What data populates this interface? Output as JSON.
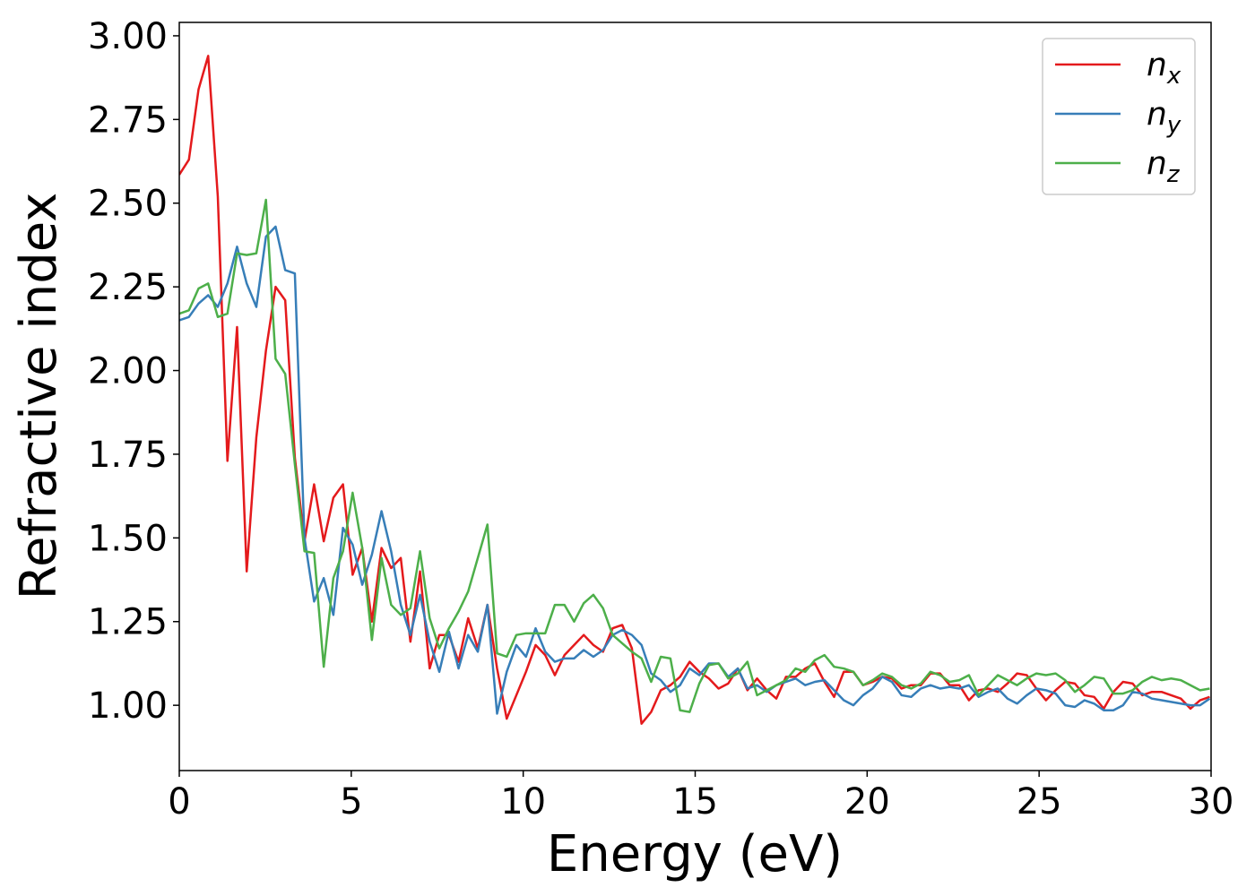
{
  "chart_data": {
    "type": "line",
    "xlabel": "Energy (eV)",
    "ylabel": "Refractive index",
    "xlim": [
      0,
      30
    ],
    "ylim": [
      0.805,
      3.04
    ],
    "xticks": [
      0,
      5,
      10,
      15,
      20,
      25,
      30
    ],
    "yticks": [
      {
        "value": 1,
        "label": "1.00"
      },
      {
        "value": 1.25,
        "label": "1.25"
      },
      {
        "value": 1.5,
        "label": "1.50"
      },
      {
        "value": 1.75,
        "label": "1.75"
      },
      {
        "value": 2,
        "label": "2.00"
      },
      {
        "value": 2.25,
        "label": "2.25"
      },
      {
        "value": 2.5,
        "label": "2.50"
      },
      {
        "value": 2.75,
        "label": "2.75"
      },
      {
        "value": 3,
        "label": "3.00"
      }
    ],
    "legend": "upper right",
    "grid": false,
    "x": [
      0,
      0.28,
      0.56,
      0.84,
      1.12,
      1.4,
      1.68,
      1.96,
      2.24,
      2.52,
      2.8,
      3.08,
      3.36,
      3.64,
      3.92,
      4.2,
      4.48,
      4.76,
      5.04,
      5.32,
      5.6,
      5.88,
      6.16,
      6.44,
      6.72,
      7,
      7.28,
      7.56,
      7.84,
      8.12,
      8.4,
      8.68,
      8.96,
      9.24,
      9.52,
      9.8,
      10.08,
      10.36,
      10.64,
      10.92,
      11.2,
      11.48,
      11.76,
      12.04,
      12.32,
      12.6,
      12.88,
      13.16,
      13.44,
      13.72,
      14,
      14.28,
      14.56,
      14.84,
      15.12,
      15.4,
      15.68,
      15.96,
      16.24,
      16.52,
      16.8,
      17.08,
      17.36,
      17.64,
      17.92,
      18.2,
      18.48,
      18.76,
      19.04,
      19.32,
      19.6,
      19.88,
      20.16,
      20.44,
      20.72,
      21,
      21.28,
      21.56,
      21.84,
      22.12,
      22.4,
      22.68,
      22.96,
      23.24,
      23.52,
      23.8,
      24.08,
      24.36,
      24.64,
      24.92,
      25.2,
      25.48,
      25.76,
      26.04,
      26.32,
      26.6,
      26.88,
      27.16,
      27.44,
      27.72,
      28,
      28.28,
      28.56,
      28.84,
      29.12,
      29.4,
      29.68,
      29.96
    ],
    "series": [
      {
        "name": "n_x",
        "color": "#e41a1c",
        "values": [
          2.585,
          2.63,
          2.84,
          2.94,
          2.52,
          1.73,
          2.13,
          1.4,
          1.8,
          2.06,
          2.25,
          2.21,
          1.74,
          1.49,
          1.66,
          1.49,
          1.62,
          1.66,
          1.39,
          1.47,
          1.25,
          1.47,
          1.41,
          1.44,
          1.19,
          1.4,
          1.11,
          1.21,
          1.21,
          1.13,
          1.26,
          1.17,
          1.3,
          1.11,
          0.96,
          1.03,
          1.1,
          1.18,
          1.15,
          1.09,
          1.15,
          1.18,
          1.21,
          1.18,
          1.16,
          1.23,
          1.24,
          1.17,
          0.945,
          0.98,
          1.045,
          1.06,
          1.085,
          1.13,
          1.1,
          1.08,
          1.05,
          1.065,
          1.11,
          1.045,
          1.08,
          1.045,
          1.02,
          1.085,
          1.085,
          1.11,
          1.125,
          1.07,
          1.025,
          1.1,
          1.1,
          1.06,
          1.07,
          1.085,
          1.08,
          1.05,
          1.06,
          1.06,
          1.095,
          1.095,
          1.06,
          1.06,
          1.015,
          1.045,
          1.05,
          1.04,
          1.065,
          1.095,
          1.09,
          1.05,
          1.015,
          1.045,
          1.07,
          1.065,
          1.03,
          1.025,
          0.99,
          1.04,
          1.07,
          1.065,
          1.03,
          1.04,
          1.04,
          1.03,
          1.02,
          0.99,
          1.015,
          1.025
        ]
      },
      {
        "name": "n_y",
        "color": "#377eb8",
        "values": [
          2.15,
          2.16,
          2.2,
          2.225,
          2.19,
          2.26,
          2.37,
          2.26,
          2.19,
          2.4,
          2.43,
          2.3,
          2.29,
          1.5,
          1.31,
          1.38,
          1.27,
          1.53,
          1.48,
          1.36,
          1.45,
          1.58,
          1.46,
          1.3,
          1.21,
          1.33,
          1.19,
          1.1,
          1.22,
          1.11,
          1.21,
          1.16,
          1.3,
          0.975,
          1.1,
          1.18,
          1.145,
          1.23,
          1.16,
          1.13,
          1.14,
          1.14,
          1.165,
          1.145,
          1.165,
          1.21,
          1.225,
          1.21,
          1.18,
          1.095,
          1.075,
          1.04,
          1.06,
          1.11,
          1.09,
          1.125,
          1.125,
          1.085,
          1.11,
          1.05,
          1.06,
          1.04,
          1.06,
          1.07,
          1.08,
          1.06,
          1.07,
          1.075,
          1.045,
          1.015,
          1.0,
          1.03,
          1.05,
          1.085,
          1.07,
          1.03,
          1.025,
          1.05,
          1.06,
          1.05,
          1.055,
          1.05,
          1.06,
          1.025,
          1.04,
          1.05,
          1.02,
          1.005,
          1.03,
          1.05,
          1.045,
          1.035,
          1.0,
          0.995,
          1.015,
          1.005,
          0.985,
          0.985,
          1.0,
          1.04,
          1.035,
          1.02,
          1.015,
          1.01,
          1.005,
          1.0,
          1.0,
          1.02
        ]
      },
      {
        "name": "n_z",
        "color": "#4daf4a",
        "values": [
          2.17,
          2.18,
          2.245,
          2.26,
          2.16,
          2.17,
          2.35,
          2.345,
          2.35,
          2.51,
          2.035,
          1.99,
          1.72,
          1.46,
          1.455,
          1.115,
          1.38,
          1.46,
          1.635,
          1.47,
          1.195,
          1.44,
          1.3,
          1.27,
          1.29,
          1.46,
          1.26,
          1.17,
          1.23,
          1.28,
          1.34,
          1.44,
          1.54,
          1.155,
          1.145,
          1.21,
          1.215,
          1.215,
          1.215,
          1.3,
          1.3,
          1.25,
          1.305,
          1.33,
          1.29,
          1.21,
          1.185,
          1.16,
          1.14,
          1.07,
          1.145,
          1.14,
          0.985,
          0.98,
          1.065,
          1.12,
          1.125,
          1.08,
          1.095,
          1.13,
          1.03,
          1.045,
          1.06,
          1.075,
          1.11,
          1.1,
          1.135,
          1.15,
          1.115,
          1.11,
          1.1,
          1.06,
          1.075,
          1.095,
          1.085,
          1.06,
          1.05,
          1.065,
          1.1,
          1.09,
          1.07,
          1.075,
          1.09,
          1.03,
          1.06,
          1.09,
          1.075,
          1.06,
          1.08,
          1.095,
          1.09,
          1.095,
          1.075,
          1.04,
          1.06,
          1.085,
          1.08,
          1.035,
          1.035,
          1.045,
          1.07,
          1.085,
          1.075,
          1.08,
          1.075,
          1.06,
          1.045,
          1.05
        ]
      }
    ]
  }
}
